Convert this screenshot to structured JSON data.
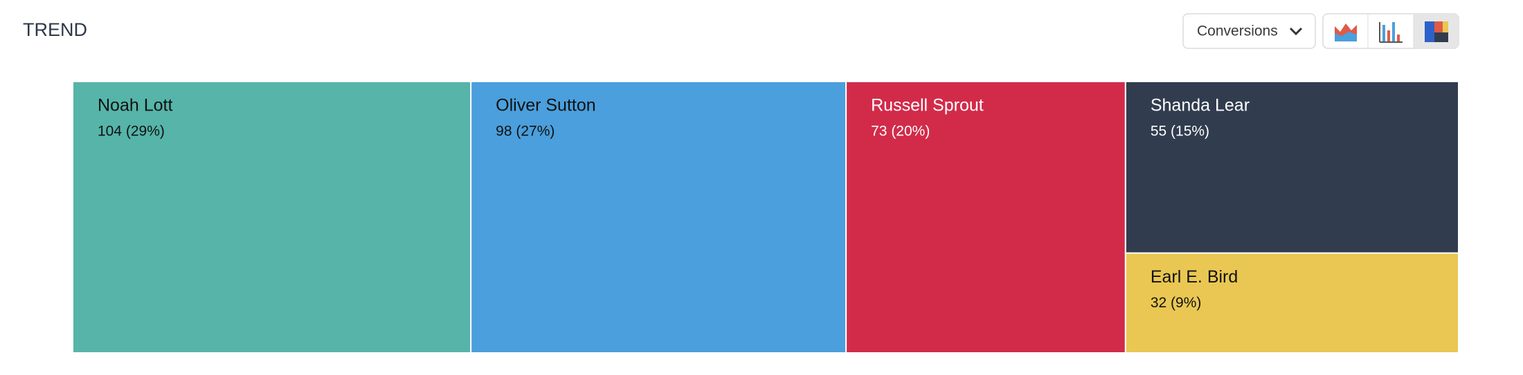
{
  "chart_data": {
    "type": "treemap",
    "title": "TREND",
    "metric": "Conversions",
    "categories": [
      "Noah Lott",
      "Oliver Sutton",
      "Russell Sprout",
      "Shanda Lear",
      "Earl E. Bird"
    ],
    "values": [
      104,
      98,
      73,
      55,
      32
    ],
    "value_labels": [
      "104 (29%)",
      "98 (27%)",
      "73 (20%)",
      "55 (15%)",
      "32 (9%)"
    ],
    "colors": [
      "#56b4a9",
      "#4a9fdc",
      "#d22b4a",
      "#313d4f",
      "#e9c752"
    ]
  }
}
